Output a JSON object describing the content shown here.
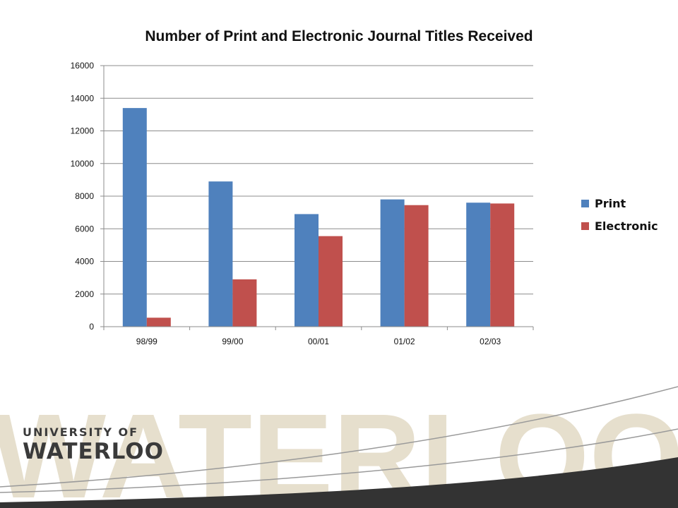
{
  "chart_data": {
    "type": "bar",
    "title": "Number of Print and Electronic Journal Titles Received",
    "categories": [
      "98/99",
      "99/00",
      "00/01",
      "01/02",
      "02/03"
    ],
    "series": [
      {
        "name": "Print",
        "color": "#4f81bd",
        "values": [
          13400,
          8900,
          6900,
          7800,
          7600
        ]
      },
      {
        "name": "Electronic",
        "color": "#c0504d",
        "values": [
          550,
          2900,
          5550,
          7450,
          7550
        ]
      }
    ],
    "ylim": [
      0,
      16000
    ],
    "yticks": [
      "0",
      "2000",
      "4000",
      "6000",
      "8000",
      "10000",
      "12000",
      "14000",
      "16000"
    ],
    "grid": true,
    "legend_position": "right"
  },
  "branding": {
    "watermark": "WATERLOO",
    "logo_line1": "UNIVERSITY OF",
    "logo_line2": "WATERLOO",
    "watermark_color": "#e6dfcd",
    "band_color": "#333333"
  }
}
